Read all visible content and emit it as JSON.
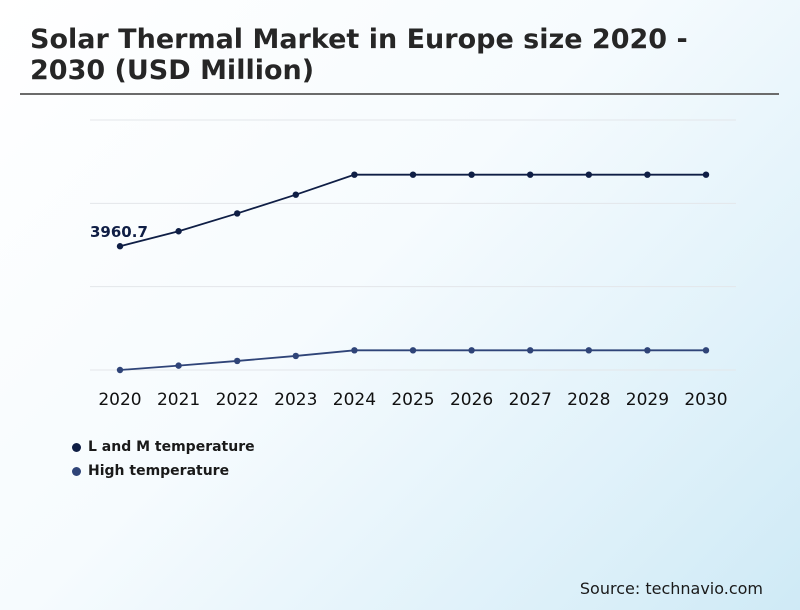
{
  "title": "Solar Thermal Market in Europe size 2020 - 2030 (USD Million)",
  "source": "Source: technavio.com",
  "colors": {
    "l_and_m": "#0f1e45",
    "high": "#2f4478",
    "grid": "#e3e6ea"
  },
  "chart_data": {
    "type": "line",
    "title": "Solar Thermal Market in Europe size 2020 - 2030 (USD Million)",
    "xlabel": "",
    "ylabel": "",
    "grid": true,
    "legend_position": "bottom-left",
    "categories": [
      "2020",
      "2021",
      "2022",
      "2023",
      "2024",
      "2025",
      "2026",
      "2027",
      "2028",
      "2029",
      "2030"
    ],
    "ylim": [
      0,
      8000
    ],
    "series": [
      {
        "name": "L and M temperature",
        "values": [
          3960.7,
          4440,
          5010,
          5610,
          6250,
          6250,
          6250,
          6250,
          6250,
          6250,
          6250
        ]
      },
      {
        "name": "High temperature",
        "values": [
          0,
          140,
          290,
          450,
          630,
          630,
          630,
          630,
          630,
          630,
          630
        ]
      }
    ],
    "annotations": [
      {
        "series": 0,
        "index": 0,
        "text": "3960.7"
      }
    ]
  }
}
